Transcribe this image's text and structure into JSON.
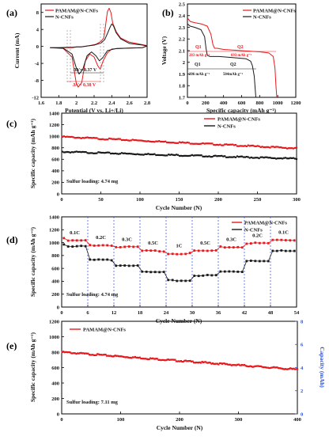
{
  "colors": {
    "red": "#e8191c",
    "black": "#1a1a1a",
    "blue": "#2b4fd8",
    "axis": "#000000"
  },
  "chart_data": [
    {
      "panel": "(a)",
      "type": "line",
      "xlabel": "Potential (V vs. Li+/Li)",
      "ylabel": "Current (mA)",
      "xlim": [
        1.6,
        2.8
      ],
      "ylim": [
        -12,
        10
      ],
      "xticks": [
        1.6,
        1.8,
        2.0,
        2.2,
        2.4,
        2.6,
        2.8
      ],
      "yticks": [
        -12,
        -8,
        -4,
        0,
        4,
        8
      ],
      "annotations": [
        "ΔV= 0.37 V",
        "ΔV= 0.38 V"
      ],
      "series": [
        {
          "name": "PAMAM@N-CNFs",
          "color": "red",
          "x": [
            1.7,
            1.85,
            1.95,
            2.0,
            2.02,
            2.06,
            2.1,
            2.15,
            2.2,
            2.24,
            2.27,
            2.3,
            2.35,
            2.4,
            2.6,
            2.75,
            2.8,
            2.75,
            2.6,
            2.5,
            2.45,
            2.41,
            2.39,
            2.37,
            2.35,
            2.33,
            2.31,
            2.28,
            2.22,
            2.15,
            2.06,
            2.02,
            2.0,
            1.98,
            1.95,
            1.9,
            1.85,
            1.8,
            1.7
          ],
          "y": [
            -0.3,
            -0.5,
            -2.5,
            -9.0,
            -9.6,
            -8.5,
            -3.5,
            -1.8,
            -2.5,
            -4.5,
            -5.4,
            -3.5,
            -1.5,
            -0.6,
            -0.4,
            -0.3,
            0.2,
            0.4,
            1.0,
            2.0,
            3.5,
            5.5,
            8.0,
            9.0,
            8.2,
            5.0,
            2.0,
            1.2,
            0.5,
            0.2,
            -0.1,
            -0.1,
            -0.1,
            -0.2,
            -0.3,
            -0.3,
            -0.3,
            -0.3,
            -0.3
          ]
        },
        {
          "name": "N-CNFs",
          "color": "black",
          "x": [
            1.7,
            1.85,
            1.95,
            2.0,
            2.03,
            2.07,
            2.12,
            2.17,
            2.22,
            2.26,
            2.3,
            2.35,
            2.45,
            2.6,
            2.75,
            2.8,
            2.75,
            2.6,
            2.5,
            2.45,
            2.42,
            2.4,
            2.38,
            2.35,
            2.32,
            2.28,
            2.2,
            2.12,
            2.05,
            2.0,
            1.95,
            1.9,
            1.8,
            1.7
          ],
          "y": [
            -0.3,
            -0.4,
            -1.8,
            -5.2,
            -6.5,
            -5.5,
            -2.2,
            -1.3,
            -2.2,
            -3.4,
            -2.6,
            -1.0,
            -0.5,
            -0.4,
            -0.3,
            0.1,
            0.3,
            0.7,
            1.8,
            3.2,
            4.8,
            5.3,
            4.5,
            3.0,
            1.6,
            0.8,
            0.3,
            0.1,
            -0.1,
            -0.1,
            -0.2,
            -0.2,
            -0.3,
            -0.3
          ]
        }
      ]
    },
    {
      "panel": "(b)",
      "type": "line",
      "xlabel": "Specific capacity (mAh g⁻¹)",
      "ylabel": "Voltage (V)",
      "xlim": [
        0,
        1200
      ],
      "ylim": [
        1.7,
        2.5
      ],
      "xticks": [
        0,
        200,
        400,
        600,
        800,
        1000,
        1200
      ],
      "yticks": [
        1.7,
        1.8,
        1.9,
        2.0,
        2.1,
        2.2,
        2.3,
        2.4,
        2.5
      ],
      "annotations": [
        "Q1",
        "283 mAh g⁻¹",
        "Q2",
        "693 mAh g⁻¹",
        "Q1",
        "206 mAh g⁻¹",
        "Q2",
        "504mAh g⁻¹"
      ],
      "series": [
        {
          "name": "PAMAM@N-CNFs",
          "color": "red",
          "x": [
            0,
            30,
            80,
            150,
            220,
            260,
            283,
            300,
            330,
            400,
            600,
            800,
            900,
            950,
            970,
            980,
            990
          ],
          "y": [
            2.38,
            2.35,
            2.34,
            2.33,
            2.31,
            2.24,
            2.15,
            2.12,
            2.12,
            2.11,
            2.1,
            2.09,
            2.08,
            2.05,
            1.95,
            1.8,
            1.7
          ]
        },
        {
          "name": "N-CNFs",
          "color": "black",
          "x": [
            0,
            30,
            80,
            150,
            190,
            206,
            220,
            250,
            350,
            500,
            650,
            700,
            720,
            740,
            750,
            758
          ],
          "y": [
            2.33,
            2.31,
            2.3,
            2.28,
            2.22,
            2.12,
            2.06,
            2.05,
            2.05,
            2.04,
            2.03,
            2.01,
            1.97,
            1.88,
            1.78,
            1.7
          ]
        }
      ]
    },
    {
      "panel": "(c)",
      "type": "line",
      "xlabel": "Cycle Number (N)",
      "ylabel": "Specific capacity (mAh g⁻¹)",
      "xlim": [
        0,
        300
      ],
      "ylim": [
        0,
        1400
      ],
      "xticks": [
        0,
        50,
        100,
        150,
        200,
        250,
        300
      ],
      "yticks": [
        0,
        200,
        400,
        600,
        800,
        1000,
        1200,
        1400
      ],
      "annotation": "Sulfur loading: 4.74 mg",
      "series": [
        {
          "name": "PAMAM@N-CNFs",
          "color": "red",
          "x": [
            1,
            300
          ],
          "y": [
            990,
            790
          ]
        },
        {
          "name": "N-CNFs",
          "color": "black",
          "x": [
            1,
            300
          ],
          "y": [
            730,
            610
          ]
        }
      ]
    },
    {
      "panel": "(d)",
      "type": "line",
      "xlabel": "Cycle Number (N)",
      "ylabel": "Specific capacity (mAh g⁻¹)",
      "xlim": [
        0,
        54
      ],
      "ylim": [
        0,
        1400
      ],
      "xticks": [
        0,
        6,
        12,
        18,
        24,
        30,
        36,
        42,
        48,
        54
      ],
      "yticks": [
        0,
        200,
        400,
        600,
        800,
        1000,
        1200,
        1400
      ],
      "rates": [
        "0.1C",
        "0.2C",
        "0.3C",
        "0.5C",
        "1C",
        "0.5C",
        "0.3C",
        "0.2C",
        "0.1C"
      ],
      "annotation": "Sulfur loading: 4.74 mg",
      "series": [
        {
          "name": "PAMAM@N-CNFs",
          "color": "red",
          "segments": [
            1030,
            960,
            930,
            870,
            830,
            870,
            930,
            990,
            1040
          ]
        },
        {
          "name": "N-CNFs",
          "color": "black",
          "segments": [
            940,
            730,
            650,
            540,
            410,
            490,
            550,
            720,
            870
          ]
        }
      ]
    },
    {
      "panel": "(e)",
      "type": "line",
      "xlabel": "Cycle Number (N)",
      "ylabel": "Specific capacity (mAh g⁻¹)",
      "y2label": "Capacity (mAh)",
      "xlim": [
        0,
        400
      ],
      "ylim": [
        0,
        1200
      ],
      "y2lim": [
        0,
        8
      ],
      "xticks": [
        0,
        100,
        200,
        300,
        400
      ],
      "yticks": [
        0,
        200,
        400,
        600,
        800,
        1000,
        1200
      ],
      "y2ticks": [
        0,
        2,
        4,
        6,
        8
      ],
      "annotation": "Sulfur loading: 7.11 mg",
      "series": [
        {
          "name": "PAMAM@N-CNFs",
          "color": "red",
          "x": [
            1,
            400
          ],
          "y": [
            800,
            575
          ]
        }
      ]
    }
  ]
}
